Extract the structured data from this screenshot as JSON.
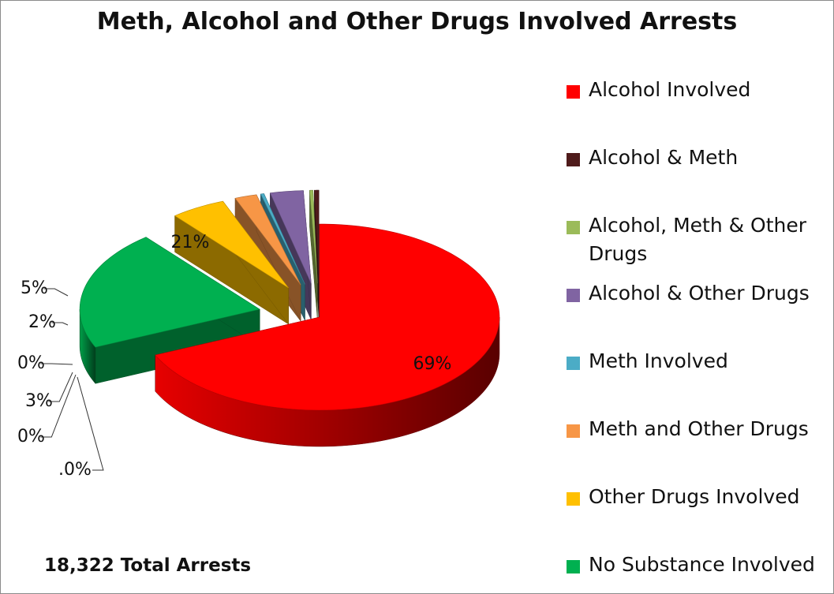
{
  "chart_data": {
    "type": "pie",
    "title": "Meth, Alcohol and Other Drugs Involved Arrests",
    "series": [
      {
        "name": "Alcohol Involved",
        "value": 69,
        "label": "69%",
        "color": "#ff0000"
      },
      {
        "name": "Alcohol & Meth",
        "value": 0.4,
        "label": ".0%",
        "color": "#4f1b1b"
      },
      {
        "name": "Alcohol, Meth & Other Drugs",
        "value": 0.3,
        "label": "0%",
        "color": "#9bbb59"
      },
      {
        "name": "Alcohol & Other Drugs",
        "value": 3,
        "label": "3%",
        "color": "#8064a2"
      },
      {
        "name": "Meth Involved",
        "value": 0.3,
        "label": "0%",
        "color": "#4bacc6"
      },
      {
        "name": "Meth and Other Drugs",
        "value": 2,
        "label": "2%",
        "color": "#f79646"
      },
      {
        "name": "Other Drugs Involved",
        "value": 5,
        "label": "5%",
        "color": "#ffc000"
      },
      {
        "name": "No Substance Involved",
        "value": 21,
        "label": "21%",
        "color": "#00b050"
      }
    ],
    "legend_position": "right",
    "style": "3d-exploded"
  },
  "footer_text": "18,322 Total Arrests"
}
